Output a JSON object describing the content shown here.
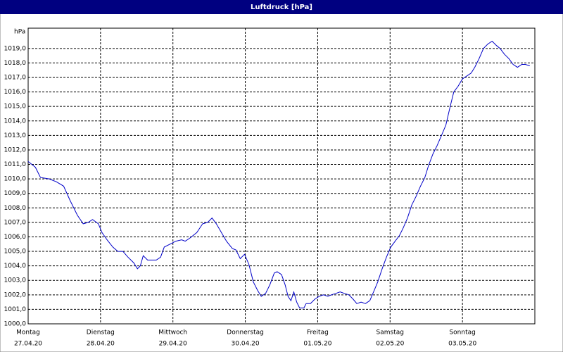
{
  "chart_data": {
    "type": "line",
    "title": "Luftdruck [hPa]",
    "ylabel": "hPa",
    "color": "#0000c8",
    "grid": true,
    "xlim": [
      0,
      7
    ],
    "xticks": [
      {
        "value": 0,
        "label": "Montag",
        "date": "27.04.20"
      },
      {
        "value": 1,
        "label": "Dienstag",
        "date": "28.04.20"
      },
      {
        "value": 2,
        "label": "Mittwoch",
        "date": "29.04.20"
      },
      {
        "value": 3,
        "label": "Donnerstag",
        "date": "30.04.20"
      },
      {
        "value": 4,
        "label": "Freitag",
        "date": "01.05.20"
      },
      {
        "value": 5,
        "label": "Samstag",
        "date": "02.05.20"
      },
      {
        "value": 6,
        "label": "Sonntag",
        "date": "03.05.20"
      }
    ],
    "ylim": [
      1000,
      1020.4
    ],
    "yticks": [
      {
        "value": 1000,
        "label": "1000,0"
      },
      {
        "value": 1001,
        "label": "1001,0"
      },
      {
        "value": 1002,
        "label": "1002,0"
      },
      {
        "value": 1003,
        "label": "1003,0"
      },
      {
        "value": 1004,
        "label": "1004,0"
      },
      {
        "value": 1005,
        "label": "1005,0"
      },
      {
        "value": 1006,
        "label": "1006,0"
      },
      {
        "value": 1007,
        "label": "1007,0"
      },
      {
        "value": 1008,
        "label": "1008,0"
      },
      {
        "value": 1009,
        "label": "1009,0"
      },
      {
        "value": 1010,
        "label": "1010,0"
      },
      {
        "value": 1011,
        "label": "1011,0"
      },
      {
        "value": 1012,
        "label": "1012,0"
      },
      {
        "value": 1013,
        "label": "1013,0"
      },
      {
        "value": 1014,
        "label": "1014,0"
      },
      {
        "value": 1015,
        "label": "1015,0"
      },
      {
        "value": 1016,
        "label": "1016,0"
      },
      {
        "value": 1017,
        "label": "1017,0"
      },
      {
        "value": 1018,
        "label": "1018,0"
      },
      {
        "value": 1019,
        "label": "1019,0"
      }
    ],
    "x": [
      0,
      0.1,
      0.17,
      0.29,
      0.39,
      0.49,
      0.58,
      0.68,
      0.76,
      0.83,
      0.89,
      0.97,
      1.02,
      1.09,
      1.17,
      1.24,
      1.31,
      1.38,
      1.46,
      1.51,
      1.55,
      1.59,
      1.65,
      1.77,
      1.83,
      1.88,
      1.96,
      2.04,
      2.12,
      2.17,
      2.23,
      2.33,
      2.41,
      2.48,
      2.54,
      2.6,
      2.67,
      2.74,
      2.82,
      2.87,
      2.93,
      2.99,
      3.05,
      3.11,
      3.17,
      3.22,
      3.28,
      3.34,
      3.4,
      3.44,
      3.5,
      3.55,
      3.59,
      3.63,
      3.67,
      3.71,
      3.75,
      3.81,
      3.84,
      3.9,
      3.96,
      4.02,
      4.08,
      4.14,
      4.19,
      4.25,
      4.31,
      4.37,
      4.43,
      4.49,
      4.54,
      4.6,
      4.66,
      4.72,
      4.78,
      4.83,
      4.89,
      4.95,
      5.01,
      5.07,
      5.13,
      5.18,
      5.24,
      5.3,
      5.36,
      5.42,
      5.48,
      5.53,
      5.59,
      5.65,
      5.71,
      5.77,
      5.83,
      5.88,
      5.94,
      6.0,
      6.06,
      6.12,
      6.17,
      6.23,
      6.29,
      6.35,
      6.41,
      6.47,
      6.52,
      6.58,
      6.64,
      6.7,
      6.76,
      6.82,
      6.87,
      6.93
    ],
    "values": [
      1011.2,
      1010.8,
      1010.1,
      1010.0,
      1009.8,
      1009.5,
      1008.5,
      1007.5,
      1006.9,
      1007.0,
      1007.2,
      1006.9,
      1006.3,
      1005.8,
      1005.3,
      1005.0,
      1005.0,
      1004.6,
      1004.2,
      1003.8,
      1004.0,
      1004.7,
      1004.4,
      1004.4,
      1004.6,
      1005.3,
      1005.5,
      1005.7,
      1005.8,
      1005.7,
      1005.9,
      1006.3,
      1006.9,
      1007.0,
      1007.3,
      1006.9,
      1006.3,
      1005.7,
      1005.2,
      1005.1,
      1004.5,
      1004.8,
      1004.1,
      1002.9,
      1002.3,
      1001.9,
      1002.1,
      1002.7,
      1003.5,
      1003.6,
      1003.4,
      1002.7,
      1001.9,
      1001.6,
      1002.2,
      1001.5,
      1001.1,
      1001.1,
      1001.4,
      1001.4,
      1001.7,
      1001.9,
      1002.0,
      1001.9,
      1002.0,
      1002.1,
      1002.2,
      1002.1,
      1002.0,
      1001.7,
      1001.4,
      1001.5,
      1001.4,
      1001.6,
      1002.3,
      1002.9,
      1003.8,
      1004.6,
      1005.3,
      1005.7,
      1006.1,
      1006.6,
      1007.3,
      1008.2,
      1008.8,
      1009.5,
      1010.1,
      1010.9,
      1011.7,
      1012.3,
      1013.0,
      1013.7,
      1015.0,
      1016.0,
      1016.4,
      1016.9,
      1017.1,
      1017.3,
      1017.7,
      1018.3,
      1019.0,
      1019.3,
      1019.5,
      1019.2,
      1019.0,
      1018.6,
      1018.3,
      1017.9,
      1017.7,
      1017.9,
      1017.9,
      1017.8
    ]
  }
}
